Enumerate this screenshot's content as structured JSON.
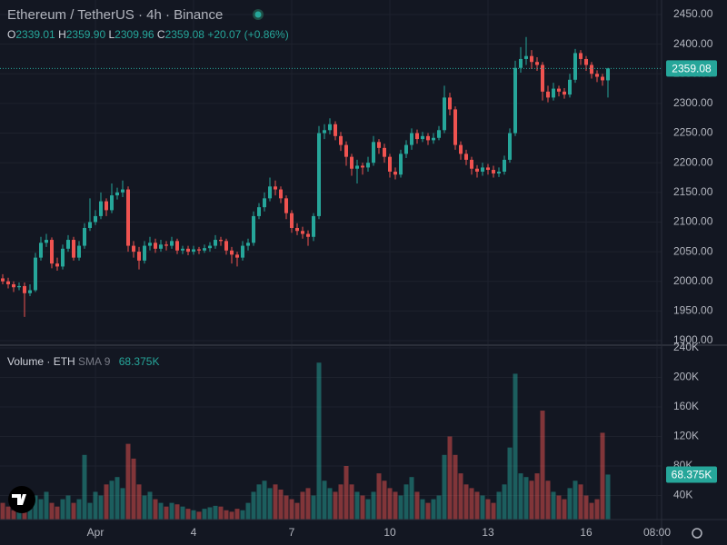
{
  "chart_data": {
    "type": "candlestick",
    "title": "Ethereum / TetherUS · 4h · Binance",
    "ohlc_legend": [
      {
        "label": "O",
        "value": "2339.01"
      },
      {
        "label": "H",
        "value": "2359.90"
      },
      {
        "label": "L",
        "value": "2309.96"
      },
      {
        "label": "C",
        "value": "2359.08"
      }
    ],
    "change": "+20.07 (+0.86%)",
    "colors": {
      "up": "#26a69a",
      "down": "#ef5350"
    },
    "open": [
      2005,
      2000,
      1995,
      1990,
      1992,
      1980,
      1985,
      2040,
      2065,
      2070,
      2030,
      2025,
      2055,
      2070,
      2040,
      2060,
      2090,
      2100,
      2110,
      2135,
      2120,
      2145,
      2150,
      2155,
      2060,
      2050,
      2035,
      2060,
      2065,
      2055,
      2062,
      2060,
      2068,
      2052,
      2055,
      2050,
      2054,
      2052,
      2056,
      2060,
      2070,
      2068,
      2052,
      2045,
      2040,
      2060,
      2065,
      2110,
      2125,
      2140,
      2160,
      2155,
      2140,
      2115,
      2090,
      2085,
      2080,
      2075,
      2110,
      2250,
      2255,
      2265,
      2245,
      2230,
      2210,
      2190,
      2195,
      2192,
      2200,
      2235,
      2225,
      2210,
      2185,
      2180,
      2215,
      2230,
      2250,
      2240,
      2245,
      2238,
      2242,
      2255,
      2310,
      2290,
      2230,
      2215,
      2205,
      2190,
      2185,
      2192,
      2188,
      2182,
      2185,
      2205,
      2250,
      2360,
      2375,
      2380,
      2370,
      2365,
      2320,
      2310,
      2325,
      2320,
      2315,
      2340,
      2385,
      2375,
      2365,
      2350,
      2345,
      2339.01
    ],
    "high": [
      2012,
      2006,
      2000,
      1998,
      1998,
      1995,
      2048,
      2075,
      2080,
      2074,
      2040,
      2062,
      2078,
      2075,
      2068,
      2098,
      2140,
      2120,
      2150,
      2140,
      2165,
      2158,
      2170,
      2160,
      2068,
      2058,
      2068,
      2075,
      2072,
      2070,
      2068,
      2075,
      2072,
      2060,
      2060,
      2060,
      2058,
      2062,
      2066,
      2078,
      2075,
      2072,
      2058,
      2050,
      2068,
      2072,
      2118,
      2132,
      2150,
      2175,
      2170,
      2160,
      2145,
      2120,
      2098,
      2092,
      2086,
      2115,
      2262,
      2265,
      2275,
      2270,
      2252,
      2236,
      2215,
      2205,
      2200,
      2210,
      2245,
      2240,
      2232,
      2215,
      2192,
      2222,
      2238,
      2258,
      2256,
      2252,
      2250,
      2250,
      2262,
      2330,
      2318,
      2295,
      2236,
      2222,
      2210,
      2196,
      2200,
      2198,
      2195,
      2192,
      2212,
      2258,
      2372,
      2395,
      2412,
      2390,
      2378,
      2370,
      2330,
      2335,
      2330,
      2326,
      2350,
      2392,
      2390,
      2380,
      2370,
      2356,
      2350,
      2359.9
    ],
    "low": [
      1995,
      1988,
      1982,
      1985,
      1940,
      1975,
      1982,
      2035,
      2058,
      2022,
      2018,
      2020,
      2050,
      2035,
      2035,
      2055,
      2085,
      2095,
      2105,
      2110,
      2115,
      2138,
      2142,
      2050,
      2040,
      2020,
      2030,
      2052,
      2048,
      2050,
      2052,
      2055,
      2046,
      2046,
      2044,
      2045,
      2046,
      2048,
      2050,
      2055,
      2060,
      2045,
      2030,
      2025,
      2035,
      2052,
      2060,
      2105,
      2118,
      2135,
      2145,
      2132,
      2105,
      2082,
      2078,
      2072,
      2060,
      2068,
      2105,
      2240,
      2248,
      2238,
      2220,
      2195,
      2178,
      2165,
      2180,
      2185,
      2195,
      2215,
      2200,
      2175,
      2172,
      2175,
      2208,
      2222,
      2232,
      2235,
      2230,
      2232,
      2238,
      2250,
      2280,
      2222,
      2205,
      2196,
      2180,
      2175,
      2178,
      2180,
      2175,
      2176,
      2180,
      2200,
      2245,
      2352,
      2365,
      2358,
      2355,
      2305,
      2302,
      2305,
      2312,
      2308,
      2310,
      2335,
      2365,
      2355,
      2342,
      2336,
      2330,
      2309.96
    ],
    "close": [
      2000,
      1995,
      1990,
      1992,
      1980,
      1985,
      2040,
      2065,
      2070,
      2030,
      2025,
      2055,
      2070,
      2040,
      2060,
      2090,
      2100,
      2110,
      2135,
      2120,
      2145,
      2150,
      2155,
      2060,
      2050,
      2035,
      2060,
      2065,
      2055,
      2062,
      2060,
      2068,
      2052,
      2055,
      2050,
      2054,
      2052,
      2056,
      2060,
      2070,
      2068,
      2052,
      2045,
      2040,
      2060,
      2065,
      2110,
      2125,
      2140,
      2160,
      2155,
      2140,
      2115,
      2090,
      2085,
      2080,
      2075,
      2110,
      2250,
      2255,
      2265,
      2245,
      2230,
      2210,
      2190,
      2195,
      2192,
      2200,
      2235,
      2225,
      2210,
      2185,
      2180,
      2215,
      2230,
      2250,
      2240,
      2245,
      2238,
      2242,
      2255,
      2310,
      2290,
      2230,
      2215,
      2205,
      2190,
      2185,
      2192,
      2188,
      2182,
      2185,
      2205,
      2250,
      2360,
      2375,
      2380,
      2370,
      2365,
      2320,
      2310,
      2325,
      2320,
      2315,
      2340,
      2385,
      2375,
      2365,
      2350,
      2345,
      2339.01,
      2359.08
    ],
    "ylim": [
      1900,
      2450
    ],
    "yticks": [
      {
        "value": 1900,
        "label": "1900.00"
      },
      {
        "value": 1950,
        "label": "1950.00"
      },
      {
        "value": 2000,
        "label": "2000.00"
      },
      {
        "value": 2050,
        "label": "2050.00"
      },
      {
        "value": 2100,
        "label": "2100.00"
      },
      {
        "value": 2150,
        "label": "2150.00"
      },
      {
        "value": 2200,
        "label": "2200.00"
      },
      {
        "value": 2250,
        "label": "2250.00"
      },
      {
        "value": 2300,
        "label": "2300.00"
      },
      {
        "value": 2350,
        "label": "2350.00"
      },
      {
        "value": 2400,
        "label": "2400.00"
      },
      {
        "value": 2450,
        "label": "2450.00"
      }
    ],
    "last_price": 2359.08,
    "xticks": [
      {
        "value": 17,
        "label": "Apr"
      },
      {
        "value": 35,
        "label": "4"
      },
      {
        "value": 53,
        "label": "7"
      },
      {
        "value": 71,
        "label": "10"
      },
      {
        "value": 89,
        "label": "13"
      },
      {
        "value": 107,
        "label": "16"
      },
      {
        "value": 120,
        "label": "08:00"
      }
    ],
    "volume": {
      "name": "Volume · ETH",
      "indicator": "SMA 9",
      "indicator_value": "68.375K",
      "values": [
        30000,
        25000,
        20000,
        50000,
        45000,
        30000,
        40000,
        35000,
        45000,
        30000,
        25000,
        35000,
        40000,
        30000,
        35000,
        95000,
        30000,
        45000,
        40000,
        55000,
        60000,
        65000,
        50000,
        110000,
        90000,
        55000,
        40000,
        45000,
        35000,
        30000,
        25000,
        30000,
        28000,
        25000,
        22000,
        20000,
        18000,
        22000,
        24000,
        26000,
        25000,
        20000,
        18000,
        22000,
        20000,
        30000,
        45000,
        55000,
        60000,
        50000,
        55000,
        48000,
        40000,
        35000,
        30000,
        45000,
        50000,
        40000,
        220000,
        60000,
        50000,
        45000,
        55000,
        80000,
        55000,
        45000,
        40000,
        35000,
        45000,
        70000,
        60000,
        50000,
        45000,
        40000,
        55000,
        65000,
        45000,
        35000,
        30000,
        35000,
        40000,
        95000,
        120000,
        95000,
        70000,
        55000,
        50000,
        45000,
        40000,
        35000,
        30000,
        45000,
        55000,
        105000,
        205000,
        70000,
        65000,
        60000,
        70000,
        155000,
        60000,
        45000,
        40000,
        35000,
        50000,
        60000,
        55000,
        40000,
        30000,
        35000,
        125000,
        68375
      ],
      "ylim": [
        0,
        240000
      ],
      "yticks": [
        {
          "value": 40000,
          "label": "40K"
        },
        {
          "value": 80000,
          "label": "80K"
        },
        {
          "value": 120000,
          "label": "120K"
        },
        {
          "value": 160000,
          "label": "160K"
        },
        {
          "value": 200000,
          "label": "200K"
        },
        {
          "value": 240000,
          "label": "240K"
        }
      ],
      "last_value": 68375,
      "last_value_label": "68.375K"
    }
  }
}
